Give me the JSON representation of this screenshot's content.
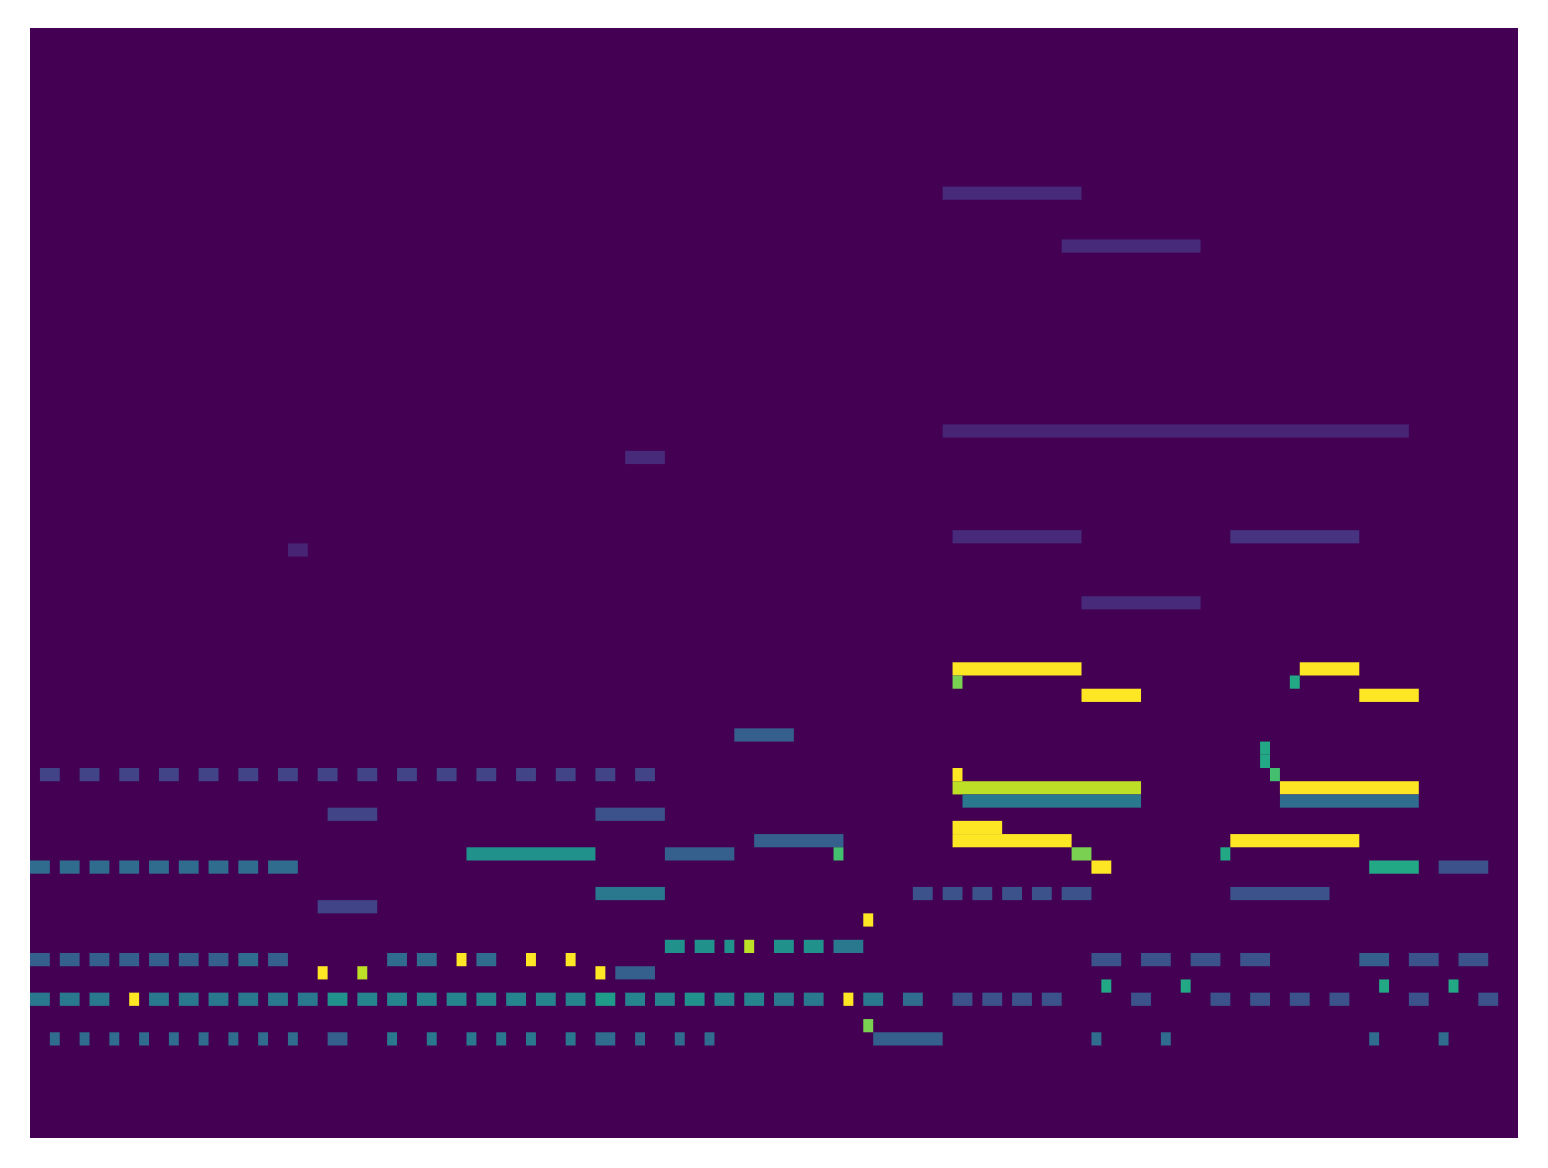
{
  "chart_data": {
    "type": "heatmap",
    "xlim": [
      0,
      150
    ],
    "ylim": [
      0,
      84
    ],
    "zlim": [
      0,
      1
    ],
    "color": "viridis",
    "tick_labels": false,
    "cells": [
      {
        "bin": 35,
        "t0": 93,
        "t1": 106,
        "value": 1
      },
      {
        "bin": 34,
        "t0": 93,
        "t1": 94,
        "value": 0.8
      },
      {
        "bin": 33,
        "t0": 106,
        "t1": 112,
        "value": 1
      },
      {
        "bin": 27,
        "t0": 93,
        "t1": 94,
        "value": 1
      },
      {
        "bin": 26,
        "t0": 93,
        "t1": 112,
        "value": 0.9
      },
      {
        "bin": 25,
        "t0": 94,
        "t1": 112,
        "value": 0.4
      },
      {
        "bin": 23,
        "t0": 93,
        "t1": 98,
        "value": 1
      },
      {
        "bin": 22,
        "t0": 93,
        "t1": 105,
        "value": 1
      },
      {
        "bin": 21,
        "t0": 105,
        "t1": 107,
        "value": 0.8
      },
      {
        "bin": 20,
        "t0": 107,
        "t1": 109,
        "value": 1
      },
      {
        "bin": 35,
        "t0": 128,
        "t1": 134,
        "value": 1
      },
      {
        "bin": 34,
        "t0": 127,
        "t1": 128,
        "value": 0.6
      },
      {
        "bin": 33,
        "t0": 134,
        "t1": 140,
        "value": 1
      },
      {
        "bin": 29,
        "t0": 124,
        "t1": 125,
        "value": 0.6
      },
      {
        "bin": 28,
        "t0": 124,
        "t1": 125,
        "value": 0.6
      },
      {
        "bin": 27,
        "t0": 125,
        "t1": 126,
        "value": 0.7
      },
      {
        "bin": 26,
        "t0": 126,
        "t1": 140,
        "value": 1
      },
      {
        "bin": 25,
        "t0": 126,
        "t1": 140,
        "value": 0.35
      },
      {
        "bin": 22,
        "t0": 121,
        "t1": 134,
        "value": 1
      },
      {
        "bin": 21,
        "t0": 120,
        "t1": 121,
        "value": 0.6
      },
      {
        "bin": 20,
        "t0": 135,
        "t1": 140,
        "value": 0.6
      },
      {
        "bin": 10,
        "t0": 0,
        "t1": 2,
        "value": 0.4
      },
      {
        "bin": 10,
        "t0": 3,
        "t1": 5,
        "value": 0.4
      },
      {
        "bin": 10,
        "t0": 6,
        "t1": 8,
        "value": 0.4
      },
      {
        "bin": 10,
        "t0": 10,
        "t1": 11,
        "value": 1
      },
      {
        "bin": 10,
        "t0": 12,
        "t1": 14,
        "value": 0.4
      },
      {
        "bin": 10,
        "t0": 15,
        "t1": 17,
        "value": 0.4
      },
      {
        "bin": 10,
        "t0": 18,
        "t1": 20,
        "value": 0.4
      },
      {
        "bin": 10,
        "t0": 21,
        "t1": 23,
        "value": 0.4
      },
      {
        "bin": 10,
        "t0": 24,
        "t1": 26,
        "value": 0.4
      },
      {
        "bin": 10,
        "t0": 27,
        "t1": 29,
        "value": 0.4
      },
      {
        "bin": 10,
        "t0": 30,
        "t1": 32,
        "value": 0.5
      },
      {
        "bin": 10,
        "t0": 33,
        "t1": 35,
        "value": 0.45
      },
      {
        "bin": 10,
        "t0": 36,
        "t1": 38,
        "value": 0.45
      },
      {
        "bin": 10,
        "t0": 39,
        "t1": 41,
        "value": 0.45
      },
      {
        "bin": 10,
        "t0": 42,
        "t1": 44,
        "value": 0.45
      },
      {
        "bin": 10,
        "t0": 45,
        "t1": 47,
        "value": 0.45
      },
      {
        "bin": 10,
        "t0": 48,
        "t1": 50,
        "value": 0.45
      },
      {
        "bin": 10,
        "t0": 51,
        "t1": 53,
        "value": 0.45
      },
      {
        "bin": 10,
        "t0": 54,
        "t1": 56,
        "value": 0.45
      },
      {
        "bin": 10,
        "t0": 57,
        "t1": 59,
        "value": 0.55
      },
      {
        "bin": 10,
        "t0": 60,
        "t1": 62,
        "value": 0.45
      },
      {
        "bin": 10,
        "t0": 63,
        "t1": 65,
        "value": 0.45
      },
      {
        "bin": 10,
        "t0": 66,
        "t1": 68,
        "value": 0.5
      },
      {
        "bin": 10,
        "t0": 69,
        "t1": 71,
        "value": 0.45
      },
      {
        "bin": 10,
        "t0": 72,
        "t1": 74,
        "value": 0.45
      },
      {
        "bin": 10,
        "t0": 75,
        "t1": 77,
        "value": 0.4
      },
      {
        "bin": 10,
        "t0": 78,
        "t1": 80,
        "value": 0.4
      },
      {
        "bin": 10,
        "t0": 82,
        "t1": 83,
        "value": 1
      },
      {
        "bin": 10,
        "t0": 84,
        "t1": 86,
        "value": 0.4
      },
      {
        "bin": 10,
        "t0": 88,
        "t1": 90,
        "value": 0.35
      },
      {
        "bin": 7,
        "t0": 2,
        "t1": 3,
        "value": 0.35
      },
      {
        "bin": 7,
        "t0": 5,
        "t1": 6,
        "value": 0.35
      },
      {
        "bin": 7,
        "t0": 8,
        "t1": 9,
        "value": 0.35
      },
      {
        "bin": 7,
        "t0": 11,
        "t1": 12,
        "value": 0.35
      },
      {
        "bin": 7,
        "t0": 14,
        "t1": 15,
        "value": 0.35
      },
      {
        "bin": 7,
        "t0": 17,
        "t1": 18,
        "value": 0.35
      },
      {
        "bin": 7,
        "t0": 20,
        "t1": 21,
        "value": 0.35
      },
      {
        "bin": 7,
        "t0": 23,
        "t1": 24,
        "value": 0.35
      },
      {
        "bin": 7,
        "t0": 26,
        "t1": 27,
        "value": 0.35
      },
      {
        "bin": 7,
        "t0": 30,
        "t1": 32,
        "value": 0.3
      },
      {
        "bin": 7,
        "t0": 36,
        "t1": 37,
        "value": 0.4
      },
      {
        "bin": 7,
        "t0": 40,
        "t1": 41,
        "value": 0.4
      },
      {
        "bin": 7,
        "t0": 44,
        "t1": 45,
        "value": 0.4
      },
      {
        "bin": 7,
        "t0": 47,
        "t1": 48,
        "value": 0.4
      },
      {
        "bin": 7,
        "t0": 50,
        "t1": 51,
        "value": 0.4
      },
      {
        "bin": 7,
        "t0": 54,
        "t1": 55,
        "value": 0.4
      },
      {
        "bin": 7,
        "t0": 57,
        "t1": 59,
        "value": 0.35
      },
      {
        "bin": 7,
        "t0": 61,
        "t1": 62,
        "value": 0.35
      },
      {
        "bin": 7,
        "t0": 65,
        "t1": 66,
        "value": 0.35
      },
      {
        "bin": 7,
        "t0": 68,
        "t1": 69,
        "value": 0.35
      },
      {
        "bin": 7,
        "t0": 85,
        "t1": 92,
        "value": 0.3
      },
      {
        "bin": 8,
        "t0": 84,
        "t1": 85,
        "value": 0.8
      },
      {
        "bin": 13,
        "t0": 0,
        "t1": 2,
        "value": 0.3
      },
      {
        "bin": 13,
        "t0": 3,
        "t1": 5,
        "value": 0.3
      },
      {
        "bin": 13,
        "t0": 6,
        "t1": 8,
        "value": 0.3
      },
      {
        "bin": 13,
        "t0": 9,
        "t1": 11,
        "value": 0.3
      },
      {
        "bin": 13,
        "t0": 12,
        "t1": 14,
        "value": 0.3
      },
      {
        "bin": 13,
        "t0": 15,
        "t1": 17,
        "value": 0.3
      },
      {
        "bin": 13,
        "t0": 18,
        "t1": 20,
        "value": 0.3
      },
      {
        "bin": 13,
        "t0": 21,
        "t1": 23,
        "value": 0.35
      },
      {
        "bin": 13,
        "t0": 24,
        "t1": 26,
        "value": 0.3
      },
      {
        "bin": 12,
        "t0": 29,
        "t1": 30,
        "value": 1
      },
      {
        "bin": 12,
        "t0": 33,
        "t1": 34,
        "value": 0.9
      },
      {
        "bin": 13,
        "t0": 36,
        "t1": 38,
        "value": 0.35
      },
      {
        "bin": 13,
        "t0": 39,
        "t1": 41,
        "value": 0.35
      },
      {
        "bin": 13,
        "t0": 43,
        "t1": 44,
        "value": 1
      },
      {
        "bin": 13,
        "t0": 45,
        "t1": 47,
        "value": 0.35
      },
      {
        "bin": 13,
        "t0": 50,
        "t1": 51,
        "value": 1
      },
      {
        "bin": 13,
        "t0": 54,
        "t1": 55,
        "value": 1
      },
      {
        "bin": 12,
        "t0": 57,
        "t1": 58,
        "value": 1
      },
      {
        "bin": 12,
        "t0": 59,
        "t1": 63,
        "value": 0.3
      },
      {
        "bin": 20,
        "t0": 0,
        "t1": 2,
        "value": 0.35
      },
      {
        "bin": 20,
        "t0": 3,
        "t1": 5,
        "value": 0.35
      },
      {
        "bin": 20,
        "t0": 6,
        "t1": 8,
        "value": 0.35
      },
      {
        "bin": 20,
        "t0": 9,
        "t1": 11,
        "value": 0.35
      },
      {
        "bin": 20,
        "t0": 12,
        "t1": 14,
        "value": 0.35
      },
      {
        "bin": 20,
        "t0": 15,
        "t1": 17,
        "value": 0.35
      },
      {
        "bin": 20,
        "t0": 18,
        "t1": 20,
        "value": 0.35
      },
      {
        "bin": 20,
        "t0": 21,
        "t1": 23,
        "value": 0.35
      },
      {
        "bin": 20,
        "t0": 24,
        "t1": 27,
        "value": 0.35
      },
      {
        "bin": 21,
        "t0": 44,
        "t1": 57,
        "value": 0.5
      },
      {
        "bin": 18,
        "t0": 57,
        "t1": 64,
        "value": 0.4
      },
      {
        "bin": 17,
        "t0": 29,
        "t1": 35,
        "value": 0.2
      },
      {
        "bin": 24,
        "t0": 30,
        "t1": 35,
        "value": 0.2
      },
      {
        "bin": 24,
        "t0": 57,
        "t1": 64,
        "value": 0.25
      },
      {
        "bin": 27,
        "t0": 1,
        "t1": 3,
        "value": 0.2
      },
      {
        "bin": 27,
        "t0": 5,
        "t1": 7,
        "value": 0.2
      },
      {
        "bin": 27,
        "t0": 9,
        "t1": 11,
        "value": 0.2
      },
      {
        "bin": 27,
        "t0": 13,
        "t1": 15,
        "value": 0.2
      },
      {
        "bin": 27,
        "t0": 17,
        "t1": 19,
        "value": 0.2
      },
      {
        "bin": 27,
        "t0": 21,
        "t1": 23,
        "value": 0.2
      },
      {
        "bin": 27,
        "t0": 25,
        "t1": 27,
        "value": 0.2
      },
      {
        "bin": 27,
        "t0": 29,
        "t1": 31,
        "value": 0.2
      },
      {
        "bin": 27,
        "t0": 33,
        "t1": 35,
        "value": 0.2
      },
      {
        "bin": 27,
        "t0": 37,
        "t1": 39,
        "value": 0.2
      },
      {
        "bin": 27,
        "t0": 41,
        "t1": 43,
        "value": 0.2
      },
      {
        "bin": 27,
        "t0": 45,
        "t1": 47,
        "value": 0.2
      },
      {
        "bin": 27,
        "t0": 49,
        "t1": 51,
        "value": 0.2
      },
      {
        "bin": 27,
        "t0": 53,
        "t1": 55,
        "value": 0.2
      },
      {
        "bin": 27,
        "t0": 57,
        "t1": 59,
        "value": 0.2
      },
      {
        "bin": 27,
        "t0": 61,
        "t1": 63,
        "value": 0.2
      },
      {
        "bin": 30,
        "t0": 71,
        "t1": 77,
        "value": 0.3
      },
      {
        "bin": 22,
        "t0": 73,
        "t1": 82,
        "value": 0.3
      },
      {
        "bin": 21,
        "t0": 64,
        "t1": 71,
        "value": 0.3
      },
      {
        "bin": 21,
        "t0": 81,
        "t1": 82,
        "value": 0.7
      },
      {
        "bin": 16,
        "t0": 84,
        "t1": 85,
        "value": 1
      },
      {
        "bin": 14,
        "t0": 64,
        "t1": 66,
        "value": 0.5
      },
      {
        "bin": 14,
        "t0": 67,
        "t1": 69,
        "value": 0.5
      },
      {
        "bin": 14,
        "t0": 70,
        "t1": 71,
        "value": 0.5
      },
      {
        "bin": 14,
        "t0": 72,
        "t1": 73,
        "value": 0.9
      },
      {
        "bin": 14,
        "t0": 75,
        "t1": 77,
        "value": 0.5
      },
      {
        "bin": 14,
        "t0": 78,
        "t1": 80,
        "value": 0.5
      },
      {
        "bin": 14,
        "t0": 81,
        "t1": 84,
        "value": 0.4
      },
      {
        "bin": 18,
        "t0": 89,
        "t1": 91,
        "value": 0.25
      },
      {
        "bin": 18,
        "t0": 92,
        "t1": 94,
        "value": 0.25
      },
      {
        "bin": 18,
        "t0": 95,
        "t1": 97,
        "value": 0.25
      },
      {
        "bin": 18,
        "t0": 98,
        "t1": 100,
        "value": 0.25
      },
      {
        "bin": 18,
        "t0": 101,
        "t1": 103,
        "value": 0.25
      },
      {
        "bin": 18,
        "t0": 104,
        "t1": 107,
        "value": 0.25
      },
      {
        "bin": 18,
        "t0": 121,
        "t1": 131,
        "value": 0.25
      },
      {
        "bin": 10,
        "t0": 93,
        "t1": 95,
        "value": 0.25
      },
      {
        "bin": 10,
        "t0": 96,
        "t1": 98,
        "value": 0.25
      },
      {
        "bin": 10,
        "t0": 99,
        "t1": 101,
        "value": 0.25
      },
      {
        "bin": 10,
        "t0": 102,
        "t1": 104,
        "value": 0.25
      },
      {
        "bin": 11,
        "t0": 108,
        "t1": 109,
        "value": 0.6
      },
      {
        "bin": 10,
        "t0": 111,
        "t1": 113,
        "value": 0.25
      },
      {
        "bin": 11,
        "t0": 116,
        "t1": 117,
        "value": 0.6
      },
      {
        "bin": 10,
        "t0": 119,
        "t1": 121,
        "value": 0.25
      },
      {
        "bin": 10,
        "t0": 123,
        "t1": 125,
        "value": 0.25
      },
      {
        "bin": 10,
        "t0": 127,
        "t1": 129,
        "value": 0.25
      },
      {
        "bin": 10,
        "t0": 131,
        "t1": 133,
        "value": 0.25
      },
      {
        "bin": 11,
        "t0": 136,
        "t1": 137,
        "value": 0.6
      },
      {
        "bin": 10,
        "t0": 139,
        "t1": 141,
        "value": 0.25
      },
      {
        "bin": 11,
        "t0": 143,
        "t1": 144,
        "value": 0.6
      },
      {
        "bin": 10,
        "t0": 146,
        "t1": 148,
        "value": 0.25
      },
      {
        "bin": 13,
        "t0": 107,
        "t1": 110,
        "value": 0.25
      },
      {
        "bin": 13,
        "t0": 112,
        "t1": 115,
        "value": 0.25
      },
      {
        "bin": 13,
        "t0": 117,
        "t1": 120,
        "value": 0.25
      },
      {
        "bin": 13,
        "t0": 122,
        "t1": 125,
        "value": 0.25
      },
      {
        "bin": 13,
        "t0": 134,
        "t1": 137,
        "value": 0.3
      },
      {
        "bin": 13,
        "t0": 139,
        "t1": 142,
        "value": 0.25
      },
      {
        "bin": 13,
        "t0": 144,
        "t1": 147,
        "value": 0.25
      },
      {
        "bin": 7,
        "t0": 107,
        "t1": 108,
        "value": 0.35
      },
      {
        "bin": 7,
        "t0": 114,
        "t1": 115,
        "value": 0.35
      },
      {
        "bin": 7,
        "t0": 135,
        "t1": 136,
        "value": 0.35
      },
      {
        "bin": 7,
        "t0": 142,
        "t1": 143,
        "value": 0.35
      },
      {
        "bin": 20,
        "t0": 142,
        "t1": 147,
        "value": 0.25
      },
      {
        "bin": 71,
        "t0": 92,
        "t1": 106,
        "value": 0.12
      },
      {
        "bin": 67,
        "t0": 104,
        "t1": 118,
        "value": 0.12
      },
      {
        "bin": 53,
        "t0": 92,
        "t1": 139,
        "value": 0.1
      },
      {
        "bin": 51,
        "t0": 60,
        "t1": 64,
        "value": 0.12
      },
      {
        "bin": 45,
        "t0": 93,
        "t1": 106,
        "value": 0.12
      },
      {
        "bin": 45,
        "t0": 121,
        "t1": 134,
        "value": 0.15
      },
      {
        "bin": 44,
        "t0": 26,
        "t1": 28,
        "value": 0.1
      },
      {
        "bin": 40,
        "t0": 106,
        "t1": 118,
        "value": 0.12
      }
    ]
  }
}
